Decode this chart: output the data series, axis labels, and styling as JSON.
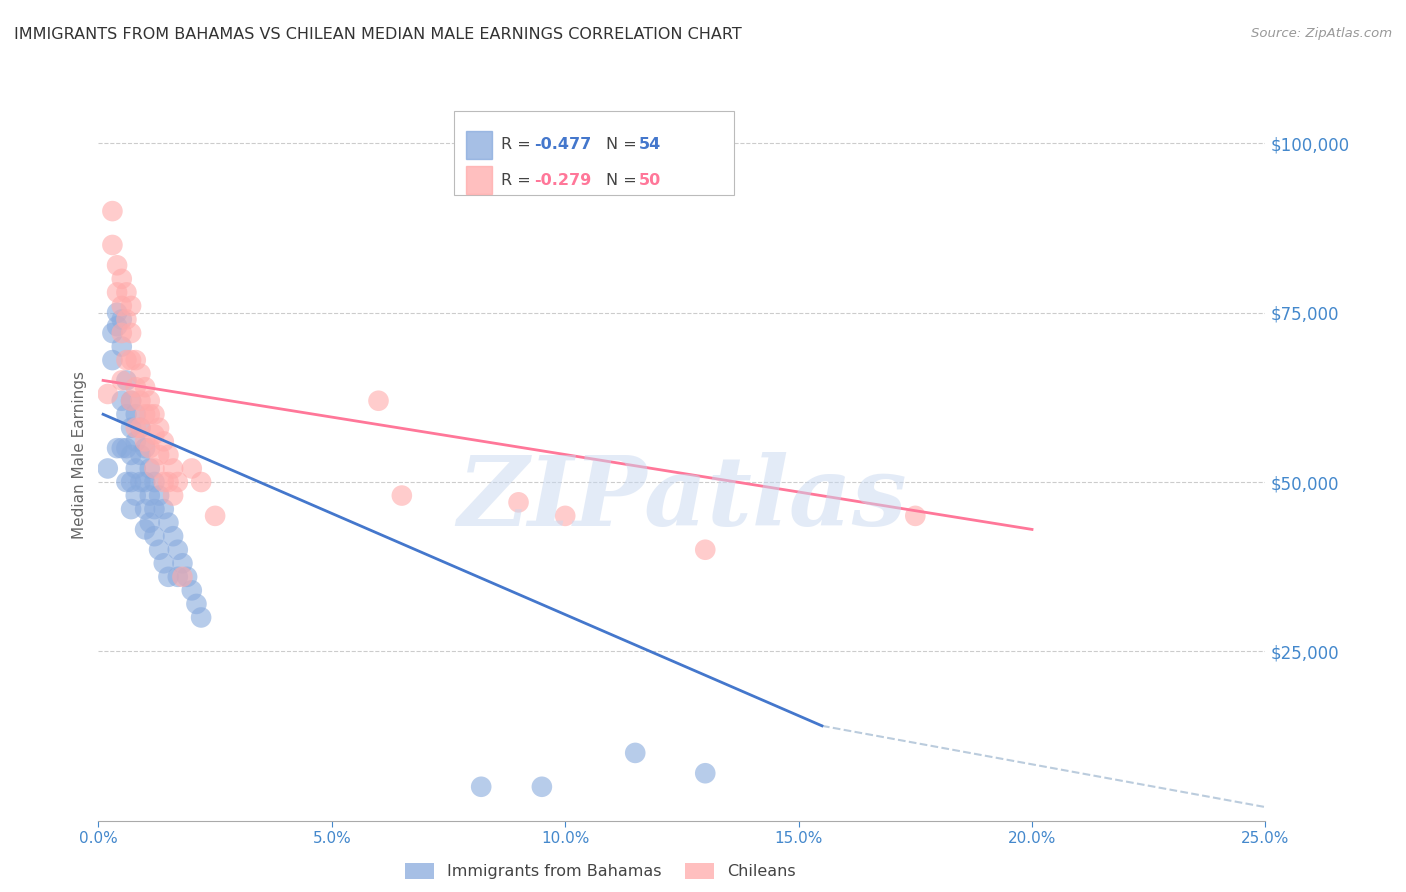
{
  "title": "IMMIGRANTS FROM BAHAMAS VS CHILEAN MEDIAN MALE EARNINGS CORRELATION CHART",
  "source": "Source: ZipAtlas.com",
  "ylabel": "Median Male Earnings",
  "ytick_labels": [
    "$25,000",
    "$50,000",
    "$75,000",
    "$100,000"
  ],
  "ytick_values": [
    25000,
    50000,
    75000,
    100000
  ],
  "xlim": [
    0.0,
    0.25
  ],
  "ylim": [
    0,
    108000
  ],
  "color_blue": "#88AADD",
  "color_pink": "#FFAAAA",
  "color_trendline_blue": "#4477CC",
  "color_trendline_pink": "#FF7799",
  "color_trendline_dashed": "#BBCCDD",
  "color_axis_labels": "#4488CC",
  "color_title": "#333333",
  "watermark_color": "#C8D8F0",
  "watermark_text": "ZIPatlas",
  "blue_scatter_x": [
    0.002,
    0.003,
    0.003,
    0.004,
    0.004,
    0.004,
    0.005,
    0.005,
    0.005,
    0.005,
    0.006,
    0.006,
    0.006,
    0.006,
    0.007,
    0.007,
    0.007,
    0.007,
    0.007,
    0.008,
    0.008,
    0.008,
    0.008,
    0.009,
    0.009,
    0.009,
    0.01,
    0.01,
    0.01,
    0.01,
    0.011,
    0.011,
    0.011,
    0.012,
    0.012,
    0.012,
    0.013,
    0.013,
    0.014,
    0.014,
    0.015,
    0.015,
    0.016,
    0.017,
    0.017,
    0.018,
    0.019,
    0.02,
    0.021,
    0.022,
    0.082,
    0.095,
    0.115,
    0.13
  ],
  "blue_scatter_y": [
    52000,
    72000,
    68000,
    75000,
    73000,
    55000,
    74000,
    70000,
    62000,
    55000,
    65000,
    60000,
    55000,
    50000,
    62000,
    58000,
    54000,
    50000,
    46000,
    60000,
    56000,
    52000,
    48000,
    58000,
    54000,
    50000,
    55000,
    50000,
    46000,
    43000,
    52000,
    48000,
    44000,
    50000,
    46000,
    42000,
    48000,
    40000,
    46000,
    38000,
    44000,
    36000,
    42000,
    40000,
    36000,
    38000,
    36000,
    34000,
    32000,
    30000,
    5000,
    5000,
    10000,
    7000
  ],
  "pink_scatter_x": [
    0.002,
    0.003,
    0.003,
    0.004,
    0.004,
    0.005,
    0.005,
    0.005,
    0.005,
    0.006,
    0.006,
    0.006,
    0.007,
    0.007,
    0.007,
    0.007,
    0.008,
    0.008,
    0.008,
    0.009,
    0.009,
    0.009,
    0.01,
    0.01,
    0.01,
    0.011,
    0.011,
    0.011,
    0.012,
    0.012,
    0.012,
    0.013,
    0.013,
    0.014,
    0.014,
    0.015,
    0.015,
    0.016,
    0.016,
    0.017,
    0.018,
    0.02,
    0.022,
    0.025,
    0.06,
    0.065,
    0.09,
    0.1,
    0.13,
    0.175
  ],
  "pink_scatter_y": [
    63000,
    90000,
    85000,
    82000,
    78000,
    80000,
    76000,
    72000,
    65000,
    78000,
    74000,
    68000,
    76000,
    72000,
    68000,
    62000,
    68000,
    64000,
    58000,
    66000,
    62000,
    58000,
    64000,
    60000,
    56000,
    62000,
    60000,
    55000,
    60000,
    57000,
    52000,
    58000,
    54000,
    56000,
    50000,
    54000,
    50000,
    52000,
    48000,
    50000,
    36000,
    52000,
    50000,
    45000,
    62000,
    48000,
    47000,
    45000,
    40000,
    45000
  ],
  "blue_trendline_x": [
    0.001,
    0.155
  ],
  "blue_trendline_y": [
    60000,
    14000
  ],
  "pink_trendline_x": [
    0.001,
    0.2
  ],
  "pink_trendline_y": [
    65000,
    43000
  ],
  "dashed_trendline_x": [
    0.155,
    0.25
  ],
  "dashed_trendline_y": [
    14000,
    2000
  ],
  "xtick_positions": [
    0.0,
    0.05,
    0.1,
    0.15,
    0.2,
    0.25
  ],
  "xtick_labels": [
    "0.0%",
    "5.0%",
    "10.0%",
    "15.0%",
    "20.0%",
    "25.0%"
  ]
}
